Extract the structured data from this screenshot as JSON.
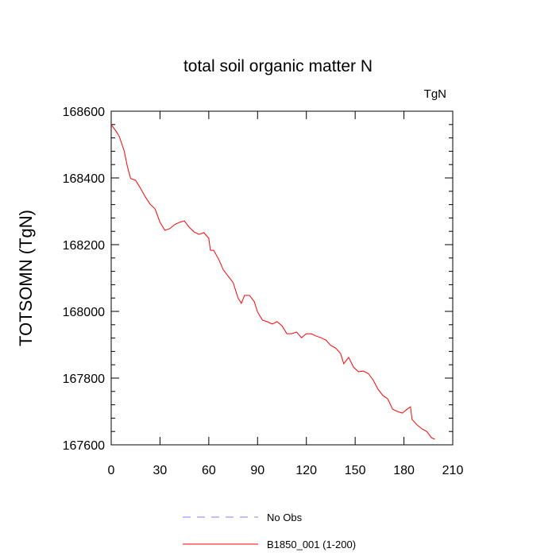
{
  "chart_data": {
    "type": "line",
    "title": "total soil organic matter N",
    "units_label": "TgN",
    "y_label": "TOTSOMN  (TgN)",
    "x": [
      0,
      3,
      5,
      8,
      10,
      12,
      15,
      18,
      21,
      24,
      27,
      30,
      33,
      36,
      39,
      42,
      45,
      48,
      51,
      54,
      57,
      60,
      61,
      63,
      66,
      69,
      72,
      75,
      78,
      80,
      82,
      85,
      88,
      90,
      93,
      96,
      99,
      102,
      105,
      108,
      111,
      114,
      117,
      120,
      123,
      126,
      129,
      132,
      135,
      138,
      141,
      143,
      146,
      149,
      152,
      155,
      158,
      161,
      164,
      167,
      170,
      173,
      176,
      179,
      182,
      184,
      185,
      188,
      191,
      194,
      197,
      199
    ],
    "series": [
      {
        "name": "B1850_001 (1-200)",
        "color": "#ff0000",
        "values": [
          168560,
          168540,
          168524,
          168481,
          168433,
          168398,
          168393,
          168369,
          168343,
          168321,
          168307,
          168267,
          168243,
          168248,
          168260,
          168267,
          168271,
          168252,
          168238,
          168231,
          168236,
          168219,
          168183,
          168183,
          168157,
          168124,
          168105,
          168086,
          168040,
          168024,
          168048,
          168048,
          168029,
          167998,
          167974,
          167969,
          167962,
          167969,
          167957,
          167933,
          167933,
          167938,
          167921,
          167933,
          167933,
          167926,
          167921,
          167914,
          167898,
          167890,
          167874,
          167843,
          167862,
          167833,
          167819,
          167821,
          167814,
          167795,
          167767,
          167748,
          167738,
          167707,
          167700,
          167695,
          167707,
          167714,
          167676,
          167660,
          167648,
          167640,
          167621,
          167617
        ]
      }
    ],
    "extra_legend": {
      "name": "No Obs",
      "color": "#8080ff",
      "dashed": true
    },
    "xlim": [
      0,
      210
    ],
    "xticks": [
      0,
      30,
      60,
      90,
      120,
      150,
      180,
      210
    ],
    "ylim": [
      167600,
      168600
    ],
    "yticks": [
      167600,
      167800,
      168000,
      168200,
      168400,
      168600
    ],
    "y_minor_per_major": 4
  }
}
